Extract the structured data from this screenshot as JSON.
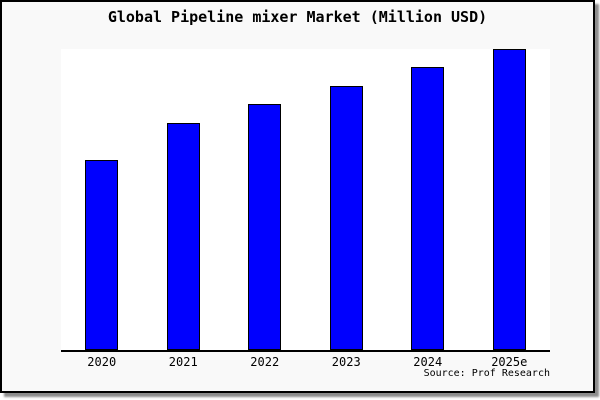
{
  "title": "Global Pipeline mixer Market (Million USD)",
  "source": "Source: Prof Research",
  "colors": {
    "frame_background": "#f9f9f9",
    "plot_background": "#ffffff",
    "bar_fill": "#0000fe",
    "bar_edge": "#000000",
    "frame_border": "#000000",
    "frame_shadow": "#8c8c8c",
    "text": "#000000"
  },
  "chart_data": {
    "type": "bar",
    "title": "Global Pipeline mixer Market (Million USD)",
    "categories": [
      "2020",
      "2021",
      "2022",
      "2023",
      "2024",
      "2025e"
    ],
    "values": [
      62.9,
      75.4,
      81.6,
      87.6,
      94.0,
      100.0
    ],
    "values_note": "relative bar heights as % of tallest (2025e) bar; chart shows no y-axis scale or value labels",
    "xlabel": "",
    "ylabel": "",
    "ylim": [
      0,
      100.7
    ],
    "grid": false,
    "legend": false,
    "bar_color": "#0000fe",
    "bar_edge_color": "#000000",
    "annotations": [
      "Source: Prof Research"
    ]
  }
}
